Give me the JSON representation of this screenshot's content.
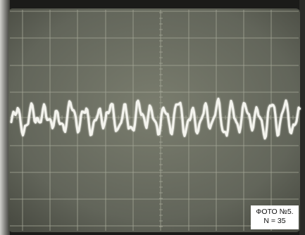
{
  "caption": {
    "line1": "ФОТО №5.",
    "line2": "N = 35"
  },
  "colors": {
    "screen": "#6b6e60",
    "grid": "#9a9d8e",
    "trace": "#f4f4ee",
    "bezel": "#1a1a1a",
    "caption_bg": "#ffffff"
  }
}
